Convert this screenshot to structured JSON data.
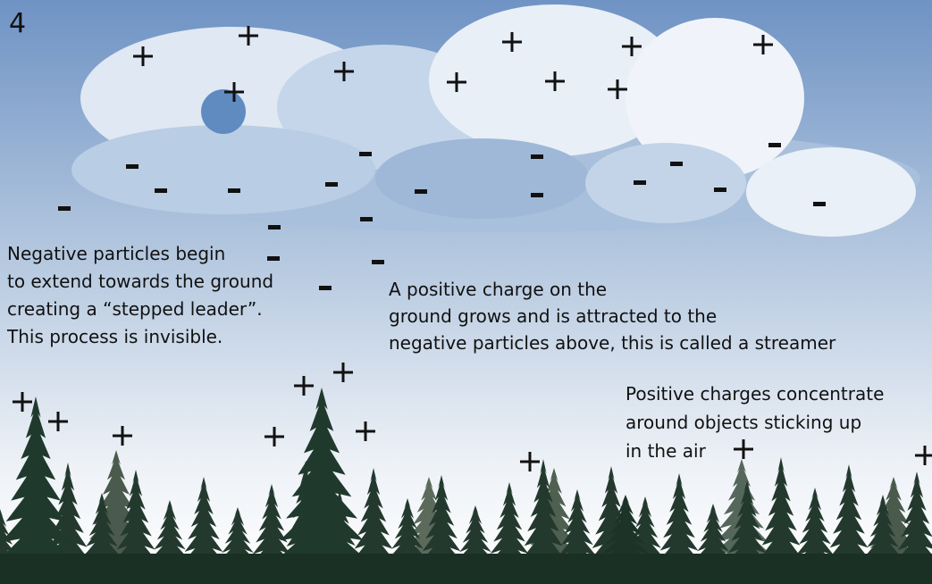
{
  "step": "4",
  "annotations": [
    {
      "lines": [
        "Negative particles begin",
        "to extend towards the ground",
        "creating a “stepped leader”.",
        "This process is invisible."
      ]
    },
    {
      "lines": [
        "A positive charge on the",
        "ground grows and is attracted to the",
        "negative particles above, this is called a streamer"
      ]
    },
    {
      "lines": [
        "Positive charges concentrate",
        "around objects sticking up",
        "in the air"
      ]
    }
  ]
}
